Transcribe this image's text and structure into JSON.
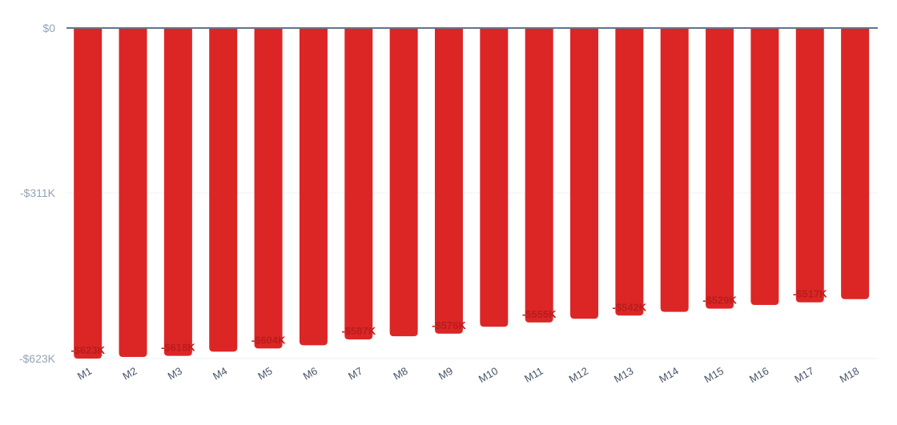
{
  "chart_data": {
    "type": "bar",
    "title": "",
    "xlabel": "",
    "ylabel": "",
    "categories": [
      "M1",
      "M2",
      "M3",
      "M4",
      "M5",
      "M6",
      "M7",
      "M8",
      "M9",
      "M10",
      "M11",
      "M12",
      "M13",
      "M14",
      "M15",
      "M16",
      "M17",
      "M18"
    ],
    "values": [
      -623,
      -620,
      -618,
      -610,
      -604,
      -598,
      -587,
      -581,
      -576,
      -563,
      -555,
      -548,
      -542,
      -535,
      -529,
      -522,
      -517,
      -511
    ],
    "value_unit": "thousands of USD",
    "data_labels": [
      {
        "index": 0,
        "text": "-$623K"
      },
      {
        "index": 2,
        "text": "-$618K"
      },
      {
        "index": 4,
        "text": "-$604K"
      },
      {
        "index": 6,
        "text": "-$587K"
      },
      {
        "index": 8,
        "text": "-$576K"
      },
      {
        "index": 10,
        "text": "-$555K"
      },
      {
        "index": 12,
        "text": "-$542K"
      },
      {
        "index": 14,
        "text": "-$529K"
      },
      {
        "index": 16,
        "text": "-$517K"
      }
    ],
    "ylim": [
      -623,
      0
    ],
    "yticks": [
      {
        "value": 0,
        "label": "$0"
      },
      {
        "value": -311,
        "label": "-$311K"
      },
      {
        "value": -623,
        "label": "-$623K"
      }
    ],
    "grid": true,
    "legend": "none",
    "colors": {
      "bar": "#dc2626",
      "data_label": "#b91c1c",
      "zero_line": "#64748b",
      "grid": "#eef1f5"
    }
  }
}
